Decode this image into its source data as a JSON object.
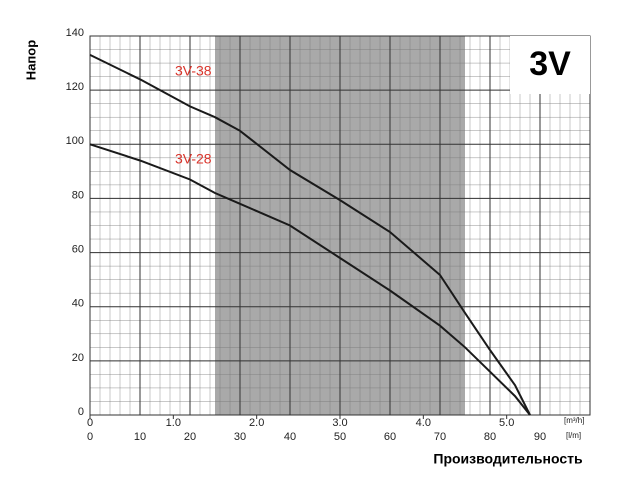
{
  "chart_data": {
    "type": "line",
    "title": "3V",
    "y_label": "Напор",
    "x_label": "Производительность",
    "x_unit": "[l/m]",
    "x2_unit": "[m³/h]",
    "x": [
      0,
      10,
      20,
      25,
      30,
      40,
      50,
      60,
      70,
      75,
      80,
      85,
      88
    ],
    "series": [
      {
        "name": "3V-38",
        "color": "#1a1a1a",
        "values": [
          133,
          124,
          114,
          110,
          105,
          90.5,
          79.4,
          67.6,
          51.7,
          37.7,
          24,
          11,
          0
        ]
      },
      {
        "name": "3V-28",
        "color": "#1a1a1a",
        "values": [
          100,
          94,
          87,
          82,
          78,
          70,
          58,
          46,
          33,
          25,
          16,
          7,
          0
        ]
      }
    ],
    "label_color": "#d9342b",
    "shaded_range": [
      25,
      75
    ],
    "shade_color": "#a9a9a9",
    "xlim": [
      0,
      100
    ],
    "xticks": [
      0,
      10,
      20,
      30,
      40,
      50,
      60,
      70,
      80,
      90
    ],
    "x2lim": [
      0,
      6
    ],
    "x2ticks": [
      0,
      {
        "value": 1,
        "label": "1.0"
      },
      {
        "value": 2,
        "label": "2.0"
      },
      {
        "value": 3,
        "label": "3.0"
      },
      {
        "value": 4,
        "label": "4.0"
      },
      {
        "value": 5,
        "label": "5.0"
      }
    ],
    "ylim": [
      0,
      140
    ],
    "yticks": [
      0,
      20,
      40,
      60,
      80,
      100,
      120,
      140
    ],
    "grid": true
  }
}
